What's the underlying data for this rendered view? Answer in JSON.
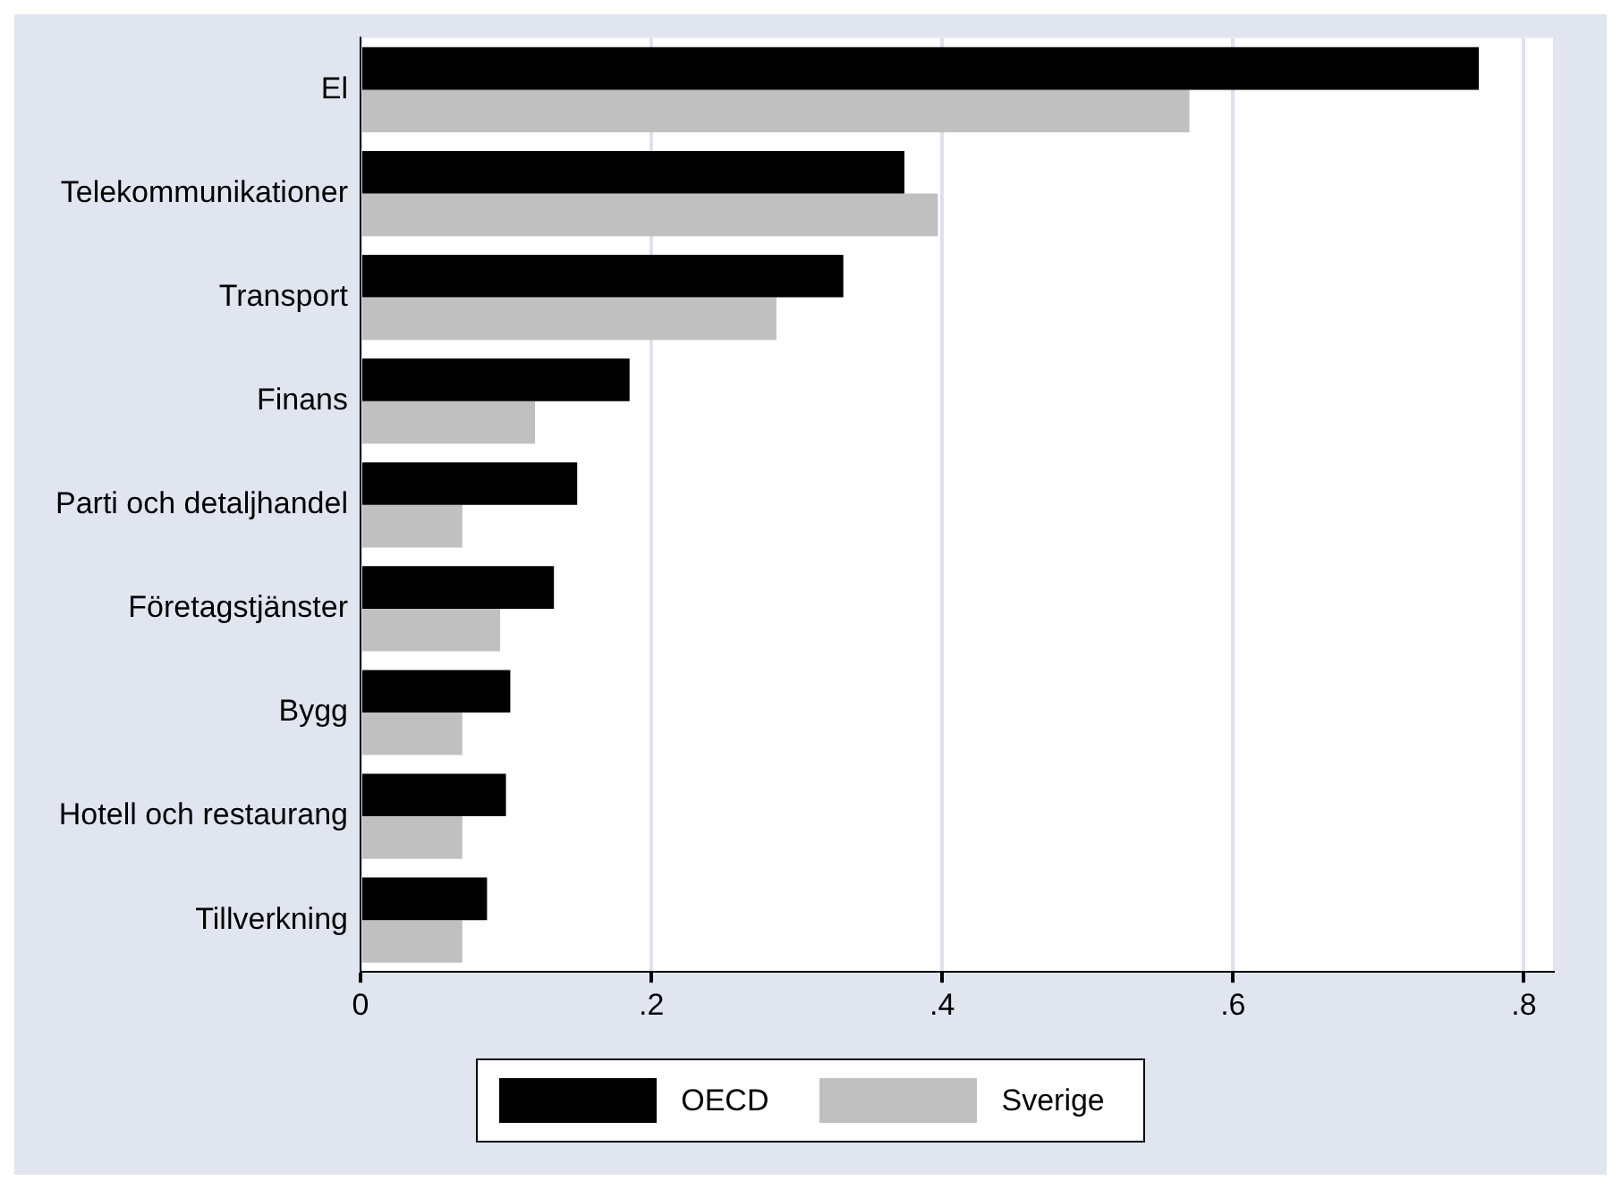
{
  "chart_data": {
    "type": "bar",
    "orientation": "horizontal",
    "categories": [
      "El",
      "Telekommunikationer",
      "Transport",
      "Finans",
      "Parti och detaljhandel",
      "Företagstjänster",
      "Bygg",
      "Hotell och restaurang",
      "Tillverkning"
    ],
    "series": [
      {
        "name": "OECD",
        "color": "#000000",
        "values": [
          0.769,
          0.374,
          0.332,
          0.185,
          0.149,
          0.133,
          0.103,
          0.1,
          0.087
        ]
      },
      {
        "name": "Sverige",
        "color": "#c0c0c0",
        "values": [
          0.57,
          0.397,
          0.286,
          0.12,
          0.07,
          0.096,
          0.07,
          0.07,
          0.07
        ]
      }
    ],
    "xlim": [
      0,
      0.82
    ],
    "xticks": [
      0,
      {
        "value": 0.2,
        "label": ".2"
      },
      {
        "value": 0.4,
        "label": ".4"
      },
      {
        "value": 0.6,
        "label": ".6"
      },
      {
        "value": 0.8,
        "label": ".8"
      }
    ],
    "grid": "x",
    "legend": "bottom"
  }
}
